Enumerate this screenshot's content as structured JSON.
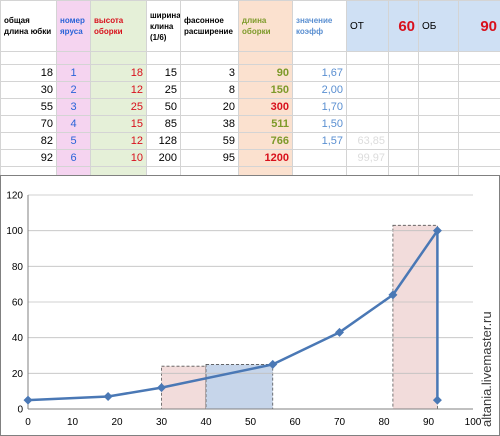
{
  "table": {
    "headers": {
      "total_length": "общая длина юбки",
      "tier_number": "номер яруса",
      "ruffle_height": "высота оборки",
      "wedge_width": "ширина клина (1/6)",
      "flare": "фасонное расширение",
      "ruffle_length": "длина оборки",
      "coef_value": "значение коэфф",
      "from_label": "ОТ",
      "from_value": "60",
      "ob_label": "ОБ",
      "ob_value": "90"
    },
    "rows": [
      {
        "total": "18",
        "tier": "1",
        "height": "18",
        "width": "15",
        "flare": "3",
        "length": "90",
        "coef": "1,67",
        "extra": ""
      },
      {
        "total": "30",
        "tier": "2",
        "height": "12",
        "width": "25",
        "flare": "8",
        "length": "150",
        "coef": "2,00",
        "extra": ""
      },
      {
        "total": "55",
        "tier": "3",
        "height": "25",
        "width": "50",
        "flare": "20",
        "length": "300",
        "coef": "1,70",
        "extra": ""
      },
      {
        "total": "70",
        "tier": "4",
        "height": "15",
        "width": "85",
        "flare": "38",
        "length": "511",
        "coef": "1,50",
        "extra": ""
      },
      {
        "total": "82",
        "tier": "5",
        "height": "12",
        "width": "128",
        "flare": "59",
        "length": "766",
        "coef": "1,57",
        "extra": "63,85"
      },
      {
        "total": "92",
        "tier": "6",
        "height": "10",
        "width": "200",
        "flare": "95",
        "length": "1200",
        "coef": "",
        "extra": "99,97"
      }
    ]
  },
  "watermark": "altania.livemaster.ru",
  "colors": {
    "line": "#4a78b5",
    "pink_fill": "#f2dcdb",
    "blue_fill": "#c6d5ea",
    "axis": "#808080"
  },
  "chart_data": {
    "type": "line",
    "x": [
      0,
      18,
      30,
      55,
      70,
      82,
      92,
      92
    ],
    "y": [
      5,
      7,
      12,
      25,
      43,
      64,
      100,
      5
    ],
    "xlim": [
      0,
      100
    ],
    "ylim": [
      0,
      120
    ],
    "xticks": [
      0,
      10,
      20,
      30,
      40,
      50,
      60,
      70,
      80,
      90,
      100
    ],
    "yticks": [
      0,
      20,
      40,
      60,
      80,
      100,
      120
    ],
    "grid": "horizontal",
    "title": "",
    "xlabel": "",
    "ylabel": "",
    "shaded_regions": [
      {
        "x_from": 30,
        "x_to": 40,
        "y_from": 0,
        "y_to": 24,
        "color": "pink"
      },
      {
        "x_from": 40,
        "x_to": 55,
        "y_from": 0,
        "y_to": 25,
        "color": "blue"
      },
      {
        "x_from": 82,
        "x_to": 92,
        "y_from": 0,
        "y_to": 103,
        "color": "pink"
      }
    ]
  }
}
